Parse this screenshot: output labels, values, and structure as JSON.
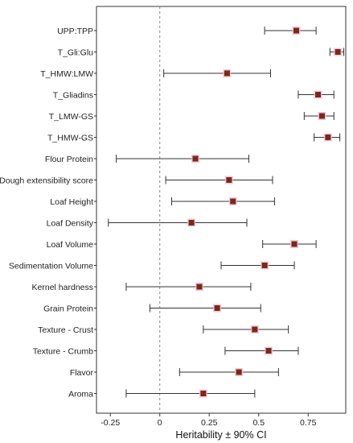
{
  "chart_data": {
    "type": "forest",
    "xlabel": "Heritability ± 90% CI",
    "ylabel": "",
    "xlim": [
      -0.32,
      0.94
    ],
    "x_ticks": [
      -0.25,
      0,
      0.25,
      0.5,
      0.75
    ],
    "x_tick_labels": [
      "-0.25",
      "0",
      "0.25",
      "0.5",
      "0.75"
    ],
    "reference_line": 0,
    "grid": false,
    "point_color": "#7a2a12",
    "highlight_color": "#f3bddd",
    "categories": [
      "UPP:TPP",
      "T_Gli:Glu",
      "T_HMW:LMW",
      "T_Gliadins",
      "T_LMW-GS",
      "T_HMW-GS",
      "Flour Protein",
      "Dough extensibility score",
      "Loaf Height",
      "Loaf Density",
      "Loaf Volume",
      "Sedimentation Volume",
      "Kernel hardness",
      "Grain Protein",
      "Texture - Crust",
      "Texture - Crumb",
      "Flavor",
      "Aroma"
    ],
    "estimates": [
      0.69,
      0.9,
      0.34,
      0.8,
      0.82,
      0.85,
      0.18,
      0.35,
      0.37,
      0.16,
      0.68,
      0.53,
      0.2,
      0.29,
      0.48,
      0.55,
      0.4,
      0.22
    ],
    "lower": [
      0.53,
      0.86,
      0.02,
      0.7,
      0.73,
      0.78,
      -0.22,
      0.03,
      0.06,
      -0.26,
      0.52,
      0.31,
      -0.17,
      -0.05,
      0.22,
      0.33,
      0.1,
      -0.17
    ],
    "upper": [
      0.79,
      0.93,
      0.56,
      0.88,
      0.88,
      0.91,
      0.45,
      0.57,
      0.58,
      0.44,
      0.79,
      0.68,
      0.46,
      0.51,
      0.65,
      0.7,
      0.6,
      0.48
    ]
  }
}
